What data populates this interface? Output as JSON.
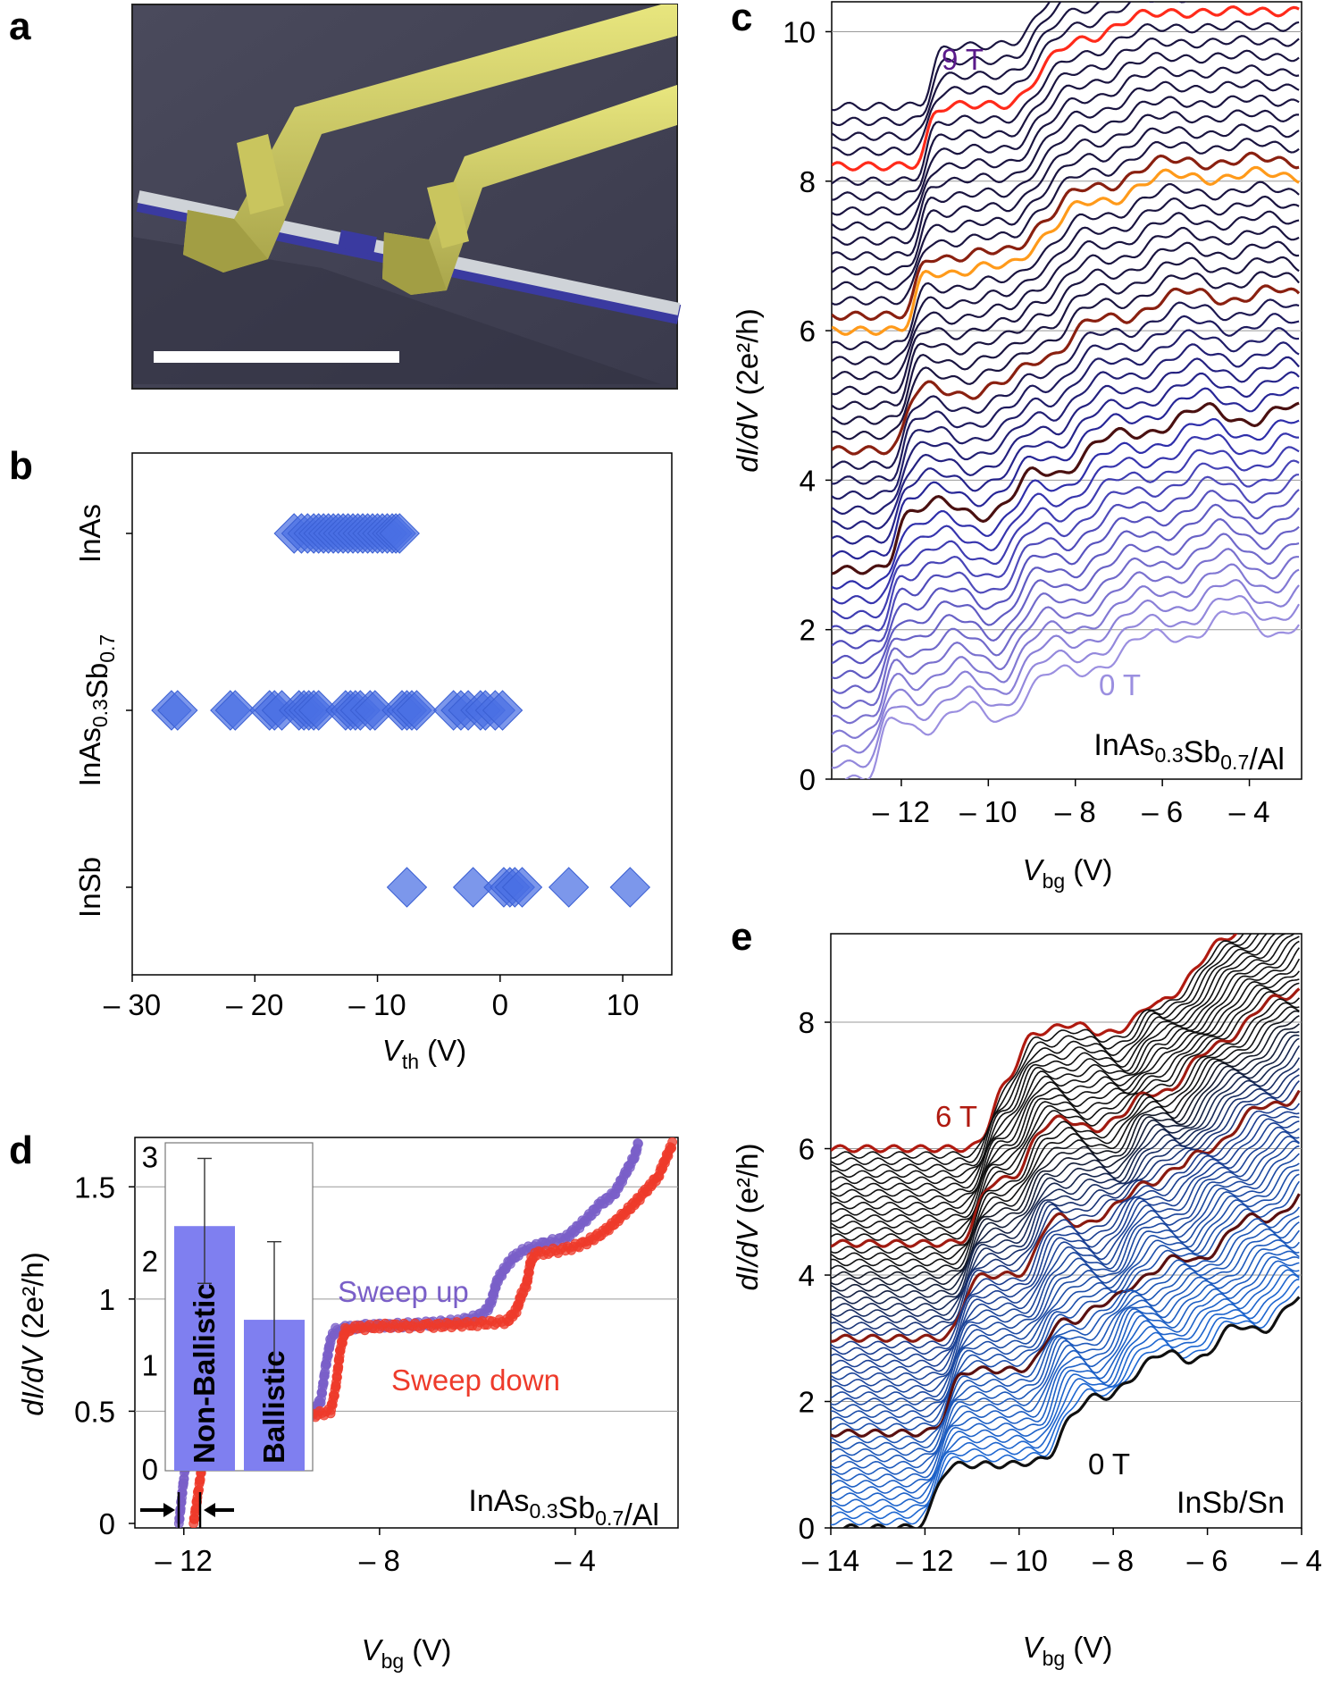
{
  "panel_labels": {
    "a": "a",
    "b": "b",
    "c": "c",
    "d": "d",
    "e": "e"
  },
  "colors": {
    "accent_blue": "#4a6fe3",
    "sweep_up": "#7a5fc8",
    "sweep_down": "#ee3b2b",
    "nanowire_yellow": "#d8d56a",
    "trace_dark": "#1a1440",
    "trace_red": "#ff2a1a",
    "trace_orange": "#ff9a1a",
    "trace_brown": "#8a2010",
    "trace_darkred": "#b01a10",
    "trace_blue": "#2b5fc0"
  },
  "chart_data": [
    {
      "id": "a",
      "type": "image",
      "description_icon": "sem-micrograph-icon"
    },
    {
      "id": "b",
      "type": "scatter",
      "title": "",
      "xlabel": "V",
      "xlabel_sub": "th",
      "xlabel_unit": "(V)",
      "xlim": [
        -30,
        14
      ],
      "xticks": [
        -30,
        -20,
        -10,
        0,
        10
      ],
      "xtick_labels": [
        "– 30",
        "– 20",
        "– 10",
        "0",
        "10"
      ],
      "categories": [
        "InAs",
        "InAs0.3Sb0.7",
        "InSb"
      ],
      "category_labels": [
        {
          "main": "InAs",
          "parts": []
        },
        {
          "main": "",
          "parts": [
            [
              "InAs",
              ""
            ],
            [
              "0.3",
              "sub"
            ],
            [
              "Sb",
              ""
            ],
            [
              "0.7",
              "sub"
            ]
          ]
        },
        {
          "main": "InSb",
          "parts": []
        }
      ],
      "series": [
        {
          "name": "InAs",
          "values": [
            -16.8,
            -16.2,
            -15.7,
            -15.2,
            -14.8,
            -14.4,
            -14.0,
            -13.6,
            -13.2,
            -12.8,
            -12.4,
            -12.0,
            -11.6,
            -11.2,
            -10.8,
            -10.4,
            -10.0,
            -9.6,
            -9.2,
            -8.8,
            -8.5,
            -8.2
          ]
        },
        {
          "name": "InAs0.3Sb0.7",
          "values": [
            -26.8,
            -26.3,
            -22.0,
            -21.6,
            -18.8,
            -18.4,
            -17.8,
            -16.4,
            -16.0,
            -15.6,
            -15.2,
            -14.8,
            -12.6,
            -12.2,
            -11.8,
            -11.4,
            -10.6,
            -10.2,
            -8.0,
            -7.6,
            -7.2,
            -6.8,
            -3.8,
            -3.2,
            -2.6,
            -1.6,
            -1.2,
            -0.4,
            0.2
          ]
        },
        {
          "name": "InSb",
          "values": [
            -7.6,
            -2.2,
            0.3,
            0.8,
            1.2,
            1.8,
            5.6,
            10.6
          ]
        }
      ]
    },
    {
      "id": "c",
      "type": "line",
      "xlabel": "V",
      "xlabel_sub": "bg",
      "xlabel_unit": "(V)",
      "ylabel": "dI/dV",
      "ylabel_unit": "(2e²/h)",
      "xlim": [
        -13.6,
        -2.8
      ],
      "ylim": [
        0,
        10.4
      ],
      "xticks": [
        -12,
        -10,
        -8,
        -6,
        -4
      ],
      "xtick_labels": [
        "– 12",
        "– 10",
        "– 8",
        "– 6",
        "– 4"
      ],
      "yticks": [
        0,
        2,
        4,
        6,
        8,
        10
      ],
      "ytick_labels": [
        "0",
        "2",
        "4",
        "6",
        "8",
        "10"
      ],
      "gridlines_y": [
        2,
        4,
        6,
        8,
        10
      ],
      "n_traces": 46,
      "offset_per_trace": 0.2,
      "field_range_T": [
        0,
        9
      ],
      "highlighted_traces": [
        {
          "index": 41,
          "color": "#ff2a1a"
        },
        {
          "index": 30,
          "color": "#ff9a1a"
        },
        {
          "index": 31,
          "color": "#8a2010"
        },
        {
          "index": 22,
          "color": "#8a2010"
        },
        {
          "index": 14,
          "color": "#4a1010"
        }
      ],
      "annotations": {
        "top": "9 T",
        "bottom": "0 T",
        "material": "InAs0.3Sb0.7/Al"
      }
    },
    {
      "id": "d",
      "type": "line",
      "xlabel": "V",
      "xlabel_sub": "bg",
      "xlabel_unit": "(V)",
      "ylabel": "dI/dV",
      "ylabel_unit": "(2e²/h)",
      "xlim": [
        -13.0,
        -1.9
      ],
      "ylim": [
        -0.02,
        1.72
      ],
      "xticks": [
        -12,
        -8,
        -4
      ],
      "xtick_labels": [
        "– 12",
        "– 8",
        "– 4"
      ],
      "yticks": [
        0,
        0.5,
        1,
        1.5
      ],
      "ytick_labels": [
        "0",
        "0.5",
        "1",
        "1.5"
      ],
      "gridlines_y": [
        0.5,
        1,
        1.5
      ],
      "series": [
        {
          "name": "Sweep up",
          "color": "#7a5fc8",
          "x": [
            -12.1,
            -12.0,
            -11.9,
            -11.8,
            -11.6,
            -11.4,
            -11.2,
            -11.0,
            -10.6,
            -10.0,
            -9.4,
            -9.2,
            -9.1,
            -9.0,
            -8.9,
            -8.8,
            -8.6,
            -8.4,
            -8.0,
            -7.0,
            -6.4,
            -6.0,
            -5.8,
            -5.7,
            -5.6,
            -5.4,
            -5.2,
            -5.0,
            -4.6,
            -4.2,
            -3.8,
            -3.5,
            -3.2,
            -3.0,
            -2.8,
            -2.7
          ],
          "y": [
            0.0,
            0.2,
            0.38,
            0.32,
            0.45,
            0.46,
            0.47,
            0.46,
            0.46,
            0.47,
            0.48,
            0.55,
            0.7,
            0.82,
            0.86,
            0.87,
            0.87,
            0.88,
            0.88,
            0.89,
            0.9,
            0.92,
            0.95,
            1.0,
            1.08,
            1.15,
            1.2,
            1.22,
            1.25,
            1.27,
            1.35,
            1.42,
            1.47,
            1.55,
            1.63,
            1.7
          ]
        },
        {
          "name": "Sweep down",
          "color": "#ee3b2b",
          "x": [
            -11.8,
            -11.7,
            -11.6,
            -11.5,
            -11.3,
            -11.0,
            -10.6,
            -10.0,
            -9.4,
            -9.0,
            -8.9,
            -8.8,
            -8.7,
            -8.6,
            -8.4,
            -8.0,
            -7.0,
            -6.0,
            -5.4,
            -5.2,
            -5.1,
            -5.0,
            -4.9,
            -4.8,
            -4.6,
            -4.2,
            -3.8,
            -3.4,
            -3.0,
            -2.6,
            -2.3,
            -2.0
          ],
          "y": [
            0.0,
            0.15,
            0.3,
            0.42,
            0.45,
            0.46,
            0.46,
            0.47,
            0.48,
            0.5,
            0.6,
            0.78,
            0.86,
            0.87,
            0.87,
            0.88,
            0.88,
            0.89,
            0.9,
            0.95,
            1.02,
            1.06,
            1.18,
            1.2,
            1.21,
            1.22,
            1.25,
            1.3,
            1.38,
            1.47,
            1.55,
            1.7
          ]
        }
      ],
      "labels": {
        "sweep_up": "Sweep up",
        "sweep_down": "Sweep down",
        "material": "InAs0.3Sb0.7/Al"
      },
      "inset": {
        "type": "bar",
        "categories": [
          "Non-Ballistic",
          "Ballistic"
        ],
        "values": [
          2.35,
          1.45
        ],
        "error_low": [
          1.8,
          0.95
        ],
        "error_high": [
          3.0,
          2.2
        ],
        "ylim": [
          0,
          3.15
        ],
        "yticks": [
          0,
          1,
          2,
          3
        ],
        "ytick_labels": [
          "0",
          "1",
          "2",
          "3"
        ],
        "color": "#7f7ff0"
      }
    },
    {
      "id": "e",
      "type": "line",
      "xlabel": "V",
      "xlabel_sub": "bg",
      "xlabel_unit": "(V)",
      "ylabel": "dI/dV",
      "ylabel_unit": "(e²/h)",
      "xlim": [
        -14,
        -4
      ],
      "ylim": [
        0,
        9.4
      ],
      "xticks": [
        -14,
        -12,
        -10,
        -8,
        -6,
        -4
      ],
      "xtick_labels": [
        "– 14",
        "– 12",
        "– 10",
        "– 8",
        "– 6",
        "– 4"
      ],
      "yticks": [
        0,
        2,
        4,
        6,
        8
      ],
      "ytick_labels": [
        "0",
        "2",
        "4",
        "6",
        "8"
      ],
      "gridlines_y": [
        2,
        4,
        6,
        8
      ],
      "n_traces": 61,
      "offset_per_trace": 0.1,
      "field_range_T": [
        0,
        6
      ],
      "highlighted_traces": [
        {
          "index": 60,
          "color": "#b01a10"
        },
        {
          "index": 45,
          "color": "#a01a10"
        },
        {
          "index": 30,
          "color": "#8a1a10"
        },
        {
          "index": 15,
          "color": "#5a1010"
        }
      ],
      "annotations": {
        "top": "6 T",
        "bottom": "0 T",
        "material": "InSb/Sn"
      }
    }
  ]
}
